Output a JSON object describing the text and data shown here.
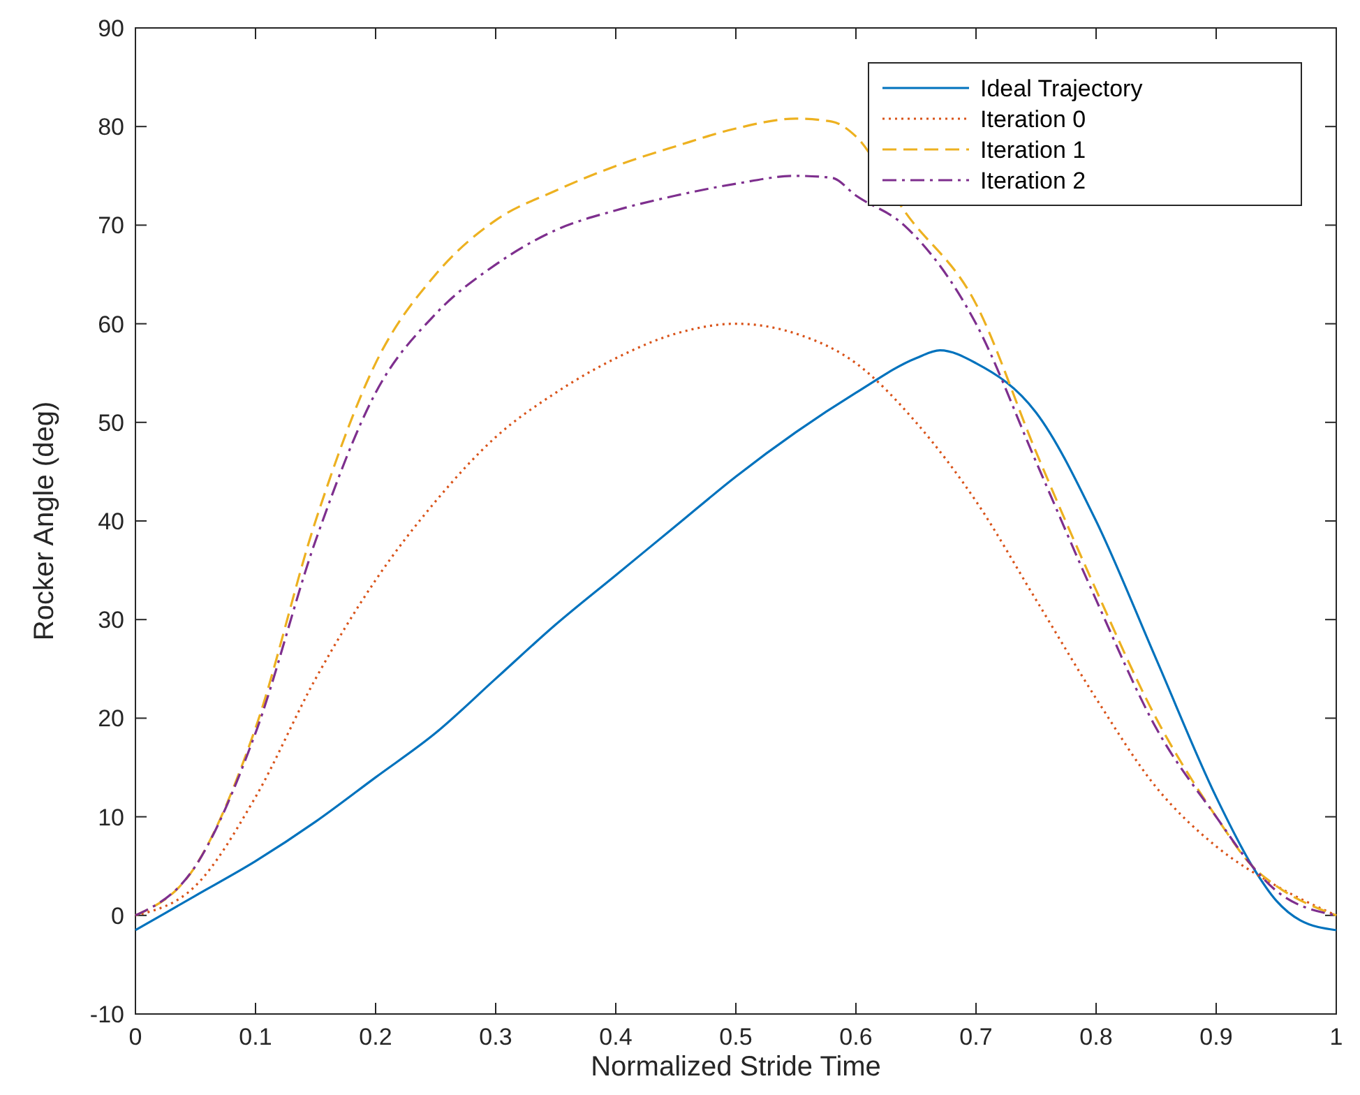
{
  "chart_data": {
    "type": "line",
    "xlabel": "Normalized Stride Time",
    "ylabel": "Rocker Angle (deg)",
    "xlim": [
      0,
      1
    ],
    "ylim": [
      -10,
      90
    ],
    "xticks": [
      0,
      0.1,
      0.2,
      0.3,
      0.4,
      0.5,
      0.6,
      0.7,
      0.8,
      0.9,
      1
    ],
    "yticks": [
      -10,
      0,
      10,
      20,
      30,
      40,
      50,
      60,
      70,
      80,
      90
    ],
    "grid": false,
    "legend": "top right",
    "series": [
      {
        "name": "Ideal Trajectory",
        "color": "#0072bd",
        "line_style": "solid",
        "x": [
          0,
          0.05,
          0.1,
          0.15,
          0.2,
          0.25,
          0.3,
          0.35,
          0.4,
          0.45,
          0.5,
          0.55,
          0.6,
          0.65,
          0.67,
          0.7,
          0.75,
          0.8,
          0.85,
          0.9,
          0.93,
          0.95,
          0.97,
          1
        ],
        "values": [
          -1.5,
          2,
          5.5,
          9.5,
          14,
          18.5,
          24,
          29.5,
          34.5,
          39.5,
          44.5,
          49,
          53,
          56.5,
          57.3,
          56,
          51,
          40,
          26,
          12,
          5,
          1.5,
          -0.5,
          -1.5
        ]
      },
      {
        "name": "Iteration 0",
        "color": "#d95319",
        "line_style": "dotted",
        "x": [
          0,
          0.05,
          0.1,
          0.15,
          0.2,
          0.25,
          0.3,
          0.35,
          0.4,
          0.45,
          0.5,
          0.55,
          0.6,
          0.65,
          0.7,
          0.75,
          0.8,
          0.85,
          0.9,
          0.95,
          1
        ],
        "values": [
          0,
          3,
          12,
          24,
          34,
          42,
          48.5,
          53,
          56.5,
          59,
          60,
          59,
          56,
          50,
          42,
          32,
          22,
          13,
          7,
          3,
          0
        ]
      },
      {
        "name": "Iteration 1",
        "color": "#edb120",
        "line_style": "dashed",
        "x": [
          0,
          0.05,
          0.1,
          0.15,
          0.2,
          0.25,
          0.3,
          0.35,
          0.4,
          0.45,
          0.5,
          0.55,
          0.58,
          0.6,
          0.64,
          0.7,
          0.75,
          0.8,
          0.85,
          0.9,
          0.93,
          0.95,
          1
        ],
        "values": [
          0,
          5,
          19,
          40,
          56,
          65,
          70.5,
          73.5,
          76,
          78,
          79.8,
          80.8,
          80.5,
          79,
          71.5,
          62,
          47,
          33,
          20,
          10,
          5,
          3,
          0
        ]
      },
      {
        "name": "Iteration 2",
        "color": "#7e2f8e",
        "line_style": "dashdot",
        "x": [
          0,
          0.05,
          0.1,
          0.15,
          0.2,
          0.25,
          0.3,
          0.35,
          0.4,
          0.45,
          0.5,
          0.55,
          0.58,
          0.6,
          0.64,
          0.7,
          0.75,
          0.8,
          0.85,
          0.9,
          0.93,
          0.95,
          1
        ],
        "values": [
          0,
          5,
          18.5,
          38,
          53,
          61,
          66,
          69.5,
          71.5,
          73,
          74.2,
          75,
          74.8,
          73,
          70,
          60,
          46,
          32,
          19,
          10,
          5,
          2.5,
          0
        ]
      }
    ]
  }
}
